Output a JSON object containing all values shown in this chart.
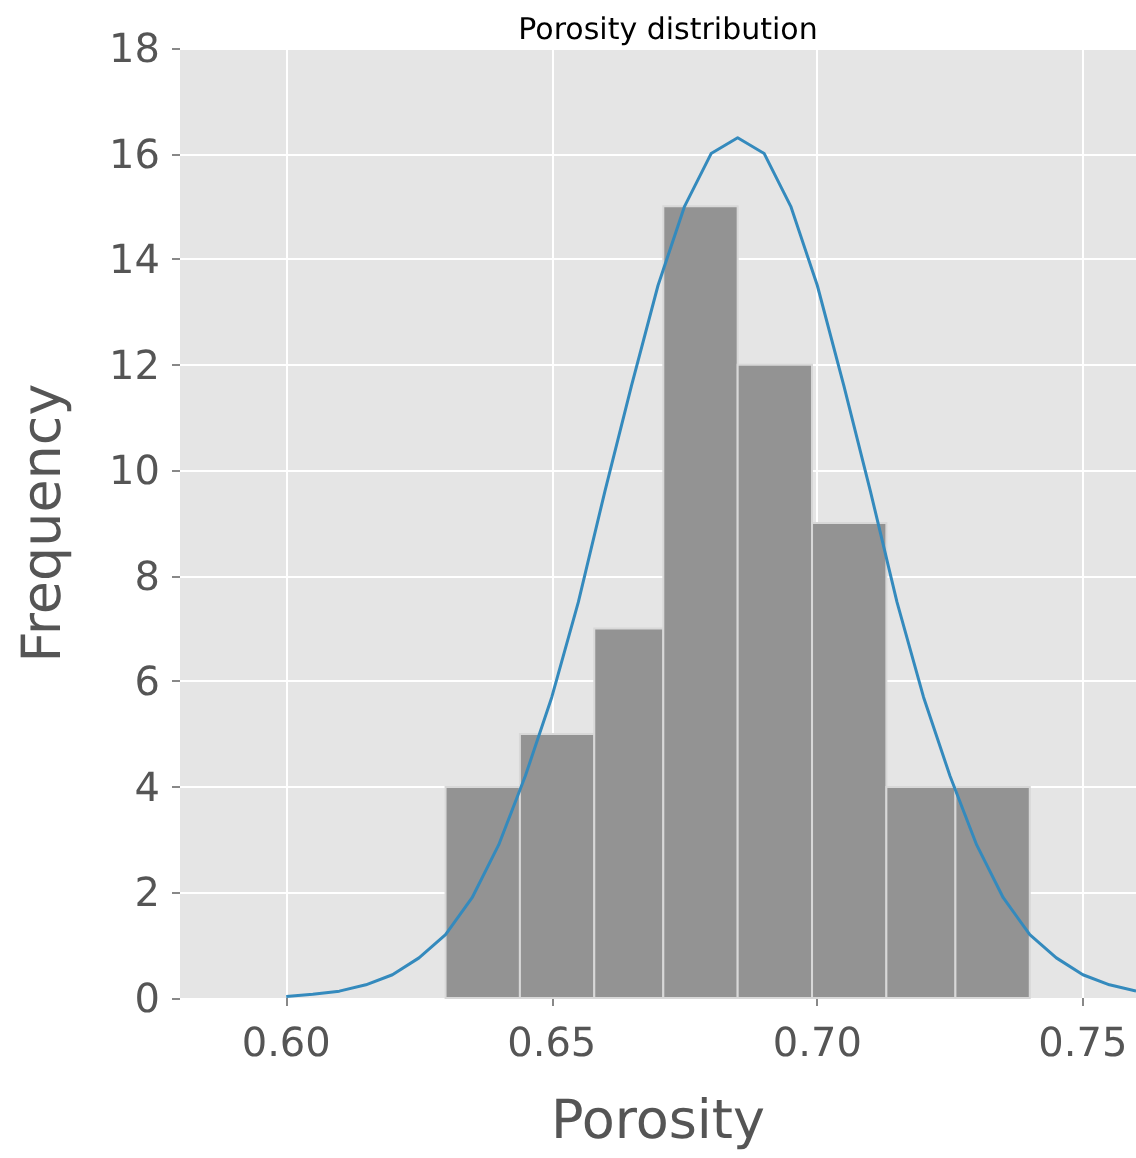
{
  "chart_data": {
    "type": "histogram",
    "title": "Porosity distribution",
    "xlabel": "Porosity",
    "ylabel": "Frequency",
    "bins": [
      0.63,
      0.644,
      0.658,
      0.671,
      0.685,
      0.699,
      0.713,
      0.726,
      0.74
    ],
    "series": [
      {
        "type": "histogram",
        "color": "#939393",
        "values": [
          4,
          5,
          7,
          15,
          12,
          9,
          4,
          4
        ]
      },
      {
        "type": "line",
        "color": "#348abd",
        "x": [
          0.6,
          0.605,
          0.61,
          0.615,
          0.62,
          0.625,
          0.63,
          0.635,
          0.64,
          0.645,
          0.65,
          0.655,
          0.66,
          0.665,
          0.67,
          0.675,
          0.68,
          0.685,
          0.69,
          0.695,
          0.7,
          0.705,
          0.71,
          0.715,
          0.72,
          0.725,
          0.73,
          0.735,
          0.74,
          0.745,
          0.75,
          0.755,
          0.76
        ],
        "values": [
          0.03,
          0.07,
          0.13,
          0.25,
          0.44,
          0.76,
          1.2,
          1.9,
          2.9,
          4.2,
          5.7,
          7.5,
          9.6,
          11.6,
          13.5,
          15.0,
          16.0,
          16.3,
          16.0,
          15.0,
          13.5,
          11.6,
          9.6,
          7.5,
          5.7,
          4.2,
          2.9,
          1.9,
          1.2,
          0.76,
          0.44,
          0.25,
          0.13
        ]
      }
    ],
    "xlim": [
      0.58,
      0.76
    ],
    "xticks": [
      {
        "value": 0.6,
        "label": "0.60"
      },
      {
        "value": 0.65,
        "label": "0.65"
      },
      {
        "value": 0.7,
        "label": "0.70"
      },
      {
        "value": 0.75,
        "label": "0.75"
      }
    ],
    "ylim": [
      0,
      18
    ],
    "yticks": [
      0,
      2,
      4,
      6,
      8,
      10,
      12,
      14,
      16,
      18
    ],
    "grid": true
  }
}
